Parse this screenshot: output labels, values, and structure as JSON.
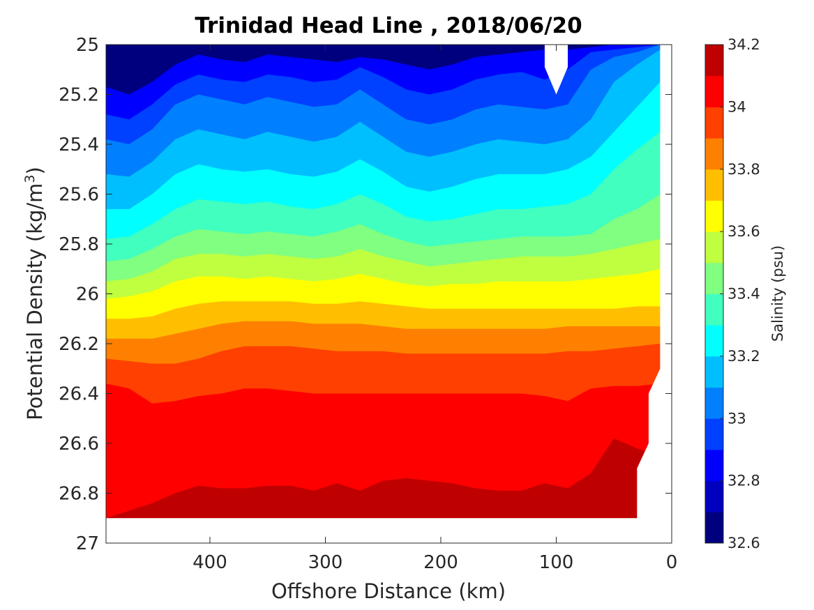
{
  "chart_data": {
    "type": "contour",
    "title": "Trinidad Head Line , 2018/06/20",
    "xlabel": "Offshore Distance (km)",
    "ylabel_main": "Potential Density (kg/m",
    "ylabel_sup": "3",
    "ylabel_close": ")",
    "x_reversed": true,
    "xlim": [
      490,
      0
    ],
    "xticks": [
      400,
      300,
      200,
      100,
      0
    ],
    "xtick_labels": [
      "400",
      "300",
      "200",
      "100",
      "0"
    ],
    "y_reversed": true,
    "ylim": [
      25,
      27
    ],
    "yticks": [
      25,
      25.2,
      25.4,
      25.6,
      25.8,
      26,
      26.2,
      26.4,
      26.6,
      26.8,
      27
    ],
    "ytick_labels": [
      "25",
      "25.2",
      "25.4",
      "25.6",
      "25.8",
      "26",
      "26.2",
      "26.4",
      "26.6",
      "26.8",
      "27"
    ],
    "data_bottom_density": 26.9,
    "colorbar": {
      "label": "Salinity (psu)",
      "range": [
        32.6,
        34.2
      ],
      "step": 0.1,
      "tick_values": [
        32.6,
        32.8,
        33,
        33.2,
        33.4,
        33.6,
        33.8,
        34,
        34.2
      ],
      "tick_labels": [
        "32.6",
        "32.8",
        "33",
        "33.2",
        "33.4",
        "33.6",
        "33.8",
        "34",
        "34.2"
      ],
      "colors": [
        "#00007f",
        "#0000bf",
        "#0000ff",
        "#0040ff",
        "#0080ff",
        "#00bfff",
        "#00ffff",
        "#40ffbf",
        "#80ff80",
        "#bfff40",
        "#ffff00",
        "#ffbf00",
        "#ff8000",
        "#ff4000",
        "#ff0000",
        "#bf0000"
      ]
    },
    "x": [
      490,
      470,
      450,
      430,
      410,
      390,
      370,
      350,
      330,
      310,
      290,
      270,
      250,
      230,
      210,
      190,
      170,
      150,
      130,
      110,
      90,
      70,
      50,
      30,
      10
    ],
    "isohalines": [
      {
        "salinity": 32.8,
        "density": [
          25.17,
          25.2,
          25.15,
          25.08,
          25.04,
          25.06,
          25.07,
          25.04,
          25.05,
          25.06,
          25.07,
          25.05,
          25.06,
          25.08,
          25.1,
          25.08,
          25.05,
          25.04,
          25.03,
          25.02,
          25.02,
          25.01,
          25.0,
          25.0,
          25.0
        ]
      },
      {
        "salinity": 32.9,
        "density": [
          25.28,
          25.3,
          25.24,
          25.16,
          25.12,
          25.14,
          25.15,
          25.12,
          25.13,
          25.15,
          25.14,
          25.09,
          25.13,
          25.18,
          25.2,
          25.18,
          25.14,
          25.12,
          25.11,
          25.14,
          25.1,
          25.03,
          25.02,
          25.01,
          25.0
        ]
      },
      {
        "salinity": 33.0,
        "density": [
          25.38,
          25.4,
          25.34,
          25.24,
          25.2,
          25.22,
          25.24,
          25.21,
          25.23,
          25.25,
          25.24,
          25.18,
          25.24,
          25.3,
          25.32,
          25.3,
          25.26,
          25.24,
          25.25,
          25.26,
          25.24,
          25.1,
          25.05,
          25.03,
          25.0
        ]
      },
      {
        "salinity": 33.1,
        "density": [
          25.52,
          25.53,
          25.47,
          25.38,
          25.34,
          25.36,
          25.38,
          25.35,
          25.37,
          25.39,
          25.37,
          25.31,
          25.37,
          25.43,
          25.45,
          25.43,
          25.4,
          25.38,
          25.39,
          25.4,
          25.38,
          25.3,
          25.15,
          25.08,
          25.02
        ]
      },
      {
        "salinity": 33.2,
        "density": [
          25.66,
          25.66,
          25.6,
          25.52,
          25.48,
          25.5,
          25.51,
          25.5,
          25.52,
          25.53,
          25.51,
          25.46,
          25.51,
          25.57,
          25.59,
          25.57,
          25.54,
          25.52,
          25.52,
          25.52,
          25.5,
          25.45,
          25.35,
          25.25,
          25.15
        ]
      },
      {
        "salinity": 33.3,
        "density": [
          25.78,
          25.77,
          25.72,
          25.66,
          25.62,
          25.63,
          25.64,
          25.63,
          25.65,
          25.66,
          25.64,
          25.6,
          25.64,
          25.69,
          25.71,
          25.7,
          25.68,
          25.66,
          25.66,
          25.65,
          25.64,
          25.6,
          25.5,
          25.42,
          25.35
        ]
      },
      {
        "salinity": 33.4,
        "density": [
          25.87,
          25.86,
          25.82,
          25.77,
          25.74,
          25.75,
          25.76,
          25.75,
          25.76,
          25.77,
          25.75,
          25.72,
          25.76,
          25.79,
          25.81,
          25.8,
          25.79,
          25.78,
          25.77,
          25.77,
          25.77,
          25.76,
          25.7,
          25.66,
          25.6
        ]
      },
      {
        "salinity": 33.5,
        "density": [
          25.95,
          25.94,
          25.91,
          25.86,
          25.84,
          25.84,
          25.85,
          25.84,
          25.85,
          25.86,
          25.85,
          25.82,
          25.85,
          25.87,
          25.89,
          25.88,
          25.87,
          25.86,
          25.85,
          25.85,
          25.85,
          25.84,
          25.82,
          25.8,
          25.78
        ]
      },
      {
        "salinity": 33.6,
        "density": [
          26.02,
          26.01,
          25.99,
          25.95,
          25.93,
          25.93,
          25.94,
          25.93,
          25.94,
          25.95,
          25.94,
          25.92,
          25.94,
          25.96,
          25.97,
          25.96,
          25.96,
          25.95,
          25.95,
          25.95,
          25.95,
          25.94,
          25.93,
          25.92,
          25.9
        ]
      },
      {
        "salinity": 33.7,
        "density": [
          26.1,
          26.1,
          26.09,
          26.06,
          26.04,
          26.03,
          26.03,
          26.03,
          26.03,
          26.04,
          26.04,
          26.03,
          26.04,
          26.05,
          26.06,
          26.06,
          26.06,
          26.06,
          26.06,
          26.06,
          26.06,
          26.06,
          26.06,
          26.05,
          26.05
        ]
      },
      {
        "salinity": 33.8,
        "density": [
          26.18,
          26.18,
          26.18,
          26.16,
          26.14,
          26.12,
          26.11,
          26.11,
          26.11,
          26.12,
          26.12,
          26.12,
          26.13,
          26.14,
          26.14,
          26.14,
          26.14,
          26.14,
          26.14,
          26.14,
          26.13,
          26.13,
          26.13,
          26.13,
          26.13
        ]
      },
      {
        "salinity": 33.9,
        "density": [
          26.26,
          26.27,
          26.28,
          26.28,
          26.26,
          26.23,
          26.21,
          26.21,
          26.21,
          26.22,
          26.23,
          26.23,
          26.23,
          26.24,
          26.24,
          26.24,
          26.24,
          26.24,
          26.24,
          26.24,
          26.23,
          26.23,
          26.22,
          26.21,
          26.2
        ]
      },
      {
        "salinity": 34.0,
        "density": [
          26.36,
          26.38,
          26.44,
          26.43,
          26.41,
          26.4,
          26.38,
          26.38,
          26.39,
          26.4,
          26.4,
          26.4,
          26.4,
          26.4,
          26.4,
          26.4,
          26.4,
          26.4,
          26.4,
          26.41,
          26.43,
          26.38,
          26.37,
          26.37,
          26.36
        ]
      },
      {
        "salinity": 34.1,
        "density": [
          26.9,
          26.87,
          26.84,
          26.8,
          26.77,
          26.78,
          26.78,
          26.77,
          26.77,
          26.79,
          26.76,
          26.79,
          26.75,
          26.74,
          26.75,
          26.76,
          26.78,
          26.79,
          26.79,
          26.76,
          26.78,
          26.72,
          26.58,
          26.62,
          26.65
        ]
      },
      {
        "salinity": 34.2,
        "density": [
          26.95,
          26.95,
          26.95,
          26.95,
          26.95,
          26.95,
          26.95,
          26.95,
          26.95,
          26.95,
          26.95,
          26.95,
          26.95,
          26.95,
          26.95,
          26.95,
          26.95,
          26.95,
          26.95,
          26.95,
          26.95,
          26.92,
          26.86,
          26.89,
          26.95
        ]
      }
    ],
    "blank_regions": [
      {
        "name": "surface-gap-near-100km",
        "points": [
          [
            110,
            25.0
          ],
          [
            90,
            25.0
          ],
          [
            90,
            25.09
          ],
          [
            100,
            25.2
          ],
          [
            110,
            25.09
          ]
        ]
      },
      {
        "name": "coastal-gap",
        "points": [
          [
            30,
            26.9
          ],
          [
            30,
            26.7
          ],
          [
            20,
            26.6
          ],
          [
            20,
            26.4
          ],
          [
            10,
            26.3
          ],
          [
            10,
            25.0
          ],
          [
            0,
            25.0
          ],
          [
            0,
            27.0
          ],
          [
            490,
            27.0
          ],
          [
            490,
            26.9
          ]
        ]
      }
    ]
  }
}
